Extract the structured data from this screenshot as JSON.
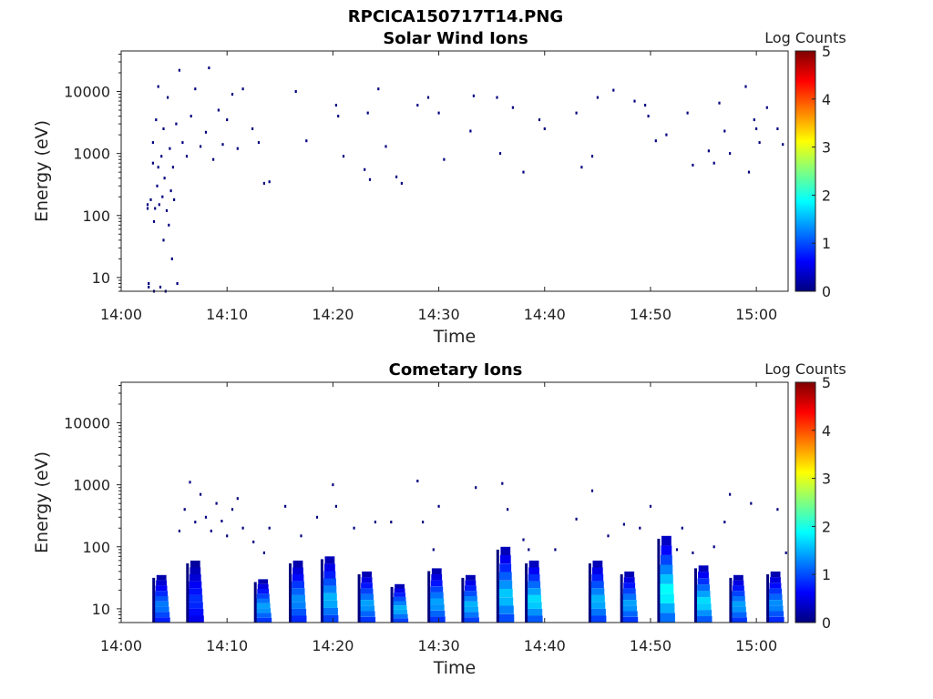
{
  "figure": {
    "title": "RPCICA150717T14.PNG"
  },
  "colors": {
    "colormap": [
      "#00007f",
      "#0000ff",
      "#007fff",
      "#00ffff",
      "#7fff7f",
      "#ffff00",
      "#ff7f00",
      "#ff0000",
      "#7f0000"
    ],
    "axis": "#222222"
  },
  "chart_data": [
    {
      "type": "heatmap",
      "title": "Solar Wind Ions",
      "xlabel": "Time",
      "ylabel": "Energy (eV)",
      "colorbar_label": "Log Counts",
      "xlim": [
        "14:00",
        "15:03"
      ],
      "ylim": [
        6,
        45000
      ],
      "yscale": "log",
      "x_ticks": [
        "14:00",
        "14:10",
        "14:20",
        "14:30",
        "14:40",
        "14:50",
        "15:00"
      ],
      "y_ticks": [
        "10",
        "100",
        "1000",
        "10000"
      ],
      "clim": [
        0,
        5
      ],
      "cbar_ticks": [
        "0",
        "1",
        "2",
        "3",
        "4",
        "5"
      ],
      "grid": false,
      "points": [
        [
          "14:02.5",
          150,
          0
        ],
        [
          "14:02.5",
          130,
          0
        ],
        [
          "14:02.6",
          7,
          0
        ],
        [
          "14:02.6",
          8,
          0
        ],
        [
          "14:02.8",
          180,
          0
        ],
        [
          "14:03.0",
          700,
          0
        ],
        [
          "14:03.0",
          1500,
          0
        ],
        [
          "14:03.1",
          80,
          0
        ],
        [
          "14:03.1",
          6,
          0
        ],
        [
          "14:03.2",
          130,
          0
        ],
        [
          "14:03.3",
          3500,
          0
        ],
        [
          "14:03.4",
          300,
          0
        ],
        [
          "14:03.5",
          600,
          0
        ],
        [
          "14:03.5",
          12000,
          0
        ],
        [
          "14:03.6",
          150,
          0
        ],
        [
          "14:03.7",
          7,
          0
        ],
        [
          "14:03.8",
          900,
          0
        ],
        [
          "14:03.9",
          200,
          0
        ],
        [
          "14:04.0",
          40,
          0
        ],
        [
          "14:04.0",
          2500,
          0
        ],
        [
          "14:04.1",
          400,
          0
        ],
        [
          "14:04.2",
          6,
          0
        ],
        [
          "14:04.3",
          120,
          0
        ],
        [
          "14:04.4",
          8000,
          0
        ],
        [
          "14:04.5",
          70,
          0
        ],
        [
          "14:04.6",
          1200,
          0
        ],
        [
          "14:04.7",
          250,
          0
        ],
        [
          "14:04.8",
          20,
          0
        ],
        [
          "14:04.9",
          600,
          0
        ],
        [
          "14:05.0",
          180,
          0
        ],
        [
          "14:05.2",
          3000,
          0
        ],
        [
          "14:05.3",
          8,
          0
        ],
        [
          "14:05.5",
          22000,
          0
        ],
        [
          "14:05.8",
          1500,
          0
        ],
        [
          "14:06.2",
          900,
          0
        ],
        [
          "14:06.6",
          4000,
          0
        ],
        [
          "14:07.0",
          11000,
          0
        ],
        [
          "14:07.5",
          1300,
          0
        ],
        [
          "14:08.0",
          2200,
          0
        ],
        [
          "14:08.3",
          24000,
          0
        ],
        [
          "14:08.7",
          800,
          0
        ],
        [
          "14:09.2",
          5000,
          0
        ],
        [
          "14:09.6",
          1400,
          0
        ],
        [
          "14:10.0",
          3500,
          0
        ],
        [
          "14:10.5",
          9000,
          0
        ],
        [
          "14:11.0",
          1200,
          0
        ],
        [
          "14:11.5",
          11000,
          0
        ],
        [
          "14:12.4",
          2500,
          0
        ],
        [
          "14:13.0",
          1500,
          0
        ],
        [
          "14:13.5",
          330,
          0
        ],
        [
          "14:14.0",
          350,
          0
        ],
        [
          "14:16.5",
          10000,
          0
        ],
        [
          "14:17.5",
          1600,
          0
        ],
        [
          "14:20.3",
          6000,
          0
        ],
        [
          "14:20.5",
          4000,
          0
        ],
        [
          "14:21.0",
          900,
          0
        ],
        [
          "14:23.0",
          550,
          0
        ],
        [
          "14:23.3",
          4500,
          0
        ],
        [
          "14:23.5",
          380,
          0
        ],
        [
          "14:24.3",
          11000,
          0
        ],
        [
          "14:25.0",
          1300,
          0
        ],
        [
          "14:26.0",
          420,
          0
        ],
        [
          "14:26.5",
          330,
          0
        ],
        [
          "14:28.0",
          6000,
          0
        ],
        [
          "14:29.0",
          8000,
          0
        ],
        [
          "14:30.0",
          4500,
          0
        ],
        [
          "14:30.5",
          800,
          0
        ],
        [
          "14:33.0",
          2300,
          0
        ],
        [
          "14:33.3",
          8500,
          0
        ],
        [
          "14:35.5",
          8000,
          0
        ],
        [
          "14:35.8",
          1000,
          0
        ],
        [
          "14:37.0",
          5500,
          0
        ],
        [
          "14:38.0",
          500,
          0
        ],
        [
          "14:39.5",
          3500,
          0
        ],
        [
          "14:40.0",
          2500,
          0
        ],
        [
          "14:43.0",
          4500,
          0
        ],
        [
          "14:43.5",
          600,
          0
        ],
        [
          "14:44.5",
          900,
          0
        ],
        [
          "14:45.0",
          8000,
          0
        ],
        [
          "14:46.5",
          10500,
          0
        ],
        [
          "14:48.5",
          7000,
          0
        ],
        [
          "14:49.5",
          6000,
          0
        ],
        [
          "14:49.8",
          4000,
          0
        ],
        [
          "14:50.5",
          1600,
          0
        ],
        [
          "14:51.5",
          2000,
          0
        ],
        [
          "14:53.5",
          4500,
          0
        ],
        [
          "14:54.0",
          650,
          0
        ],
        [
          "14:55.5",
          1100,
          0
        ],
        [
          "14:56.0",
          700,
          0
        ],
        [
          "14:56.5",
          6500,
          0
        ],
        [
          "14:57.0",
          2300,
          0
        ],
        [
          "14:57.5",
          1000,
          0
        ],
        [
          "14:59.0",
          12000,
          0
        ],
        [
          "14:59.3",
          500,
          0
        ],
        [
          "14:59.8",
          3500,
          0
        ],
        [
          "15:00.0",
          2500,
          0
        ],
        [
          "15:00.3",
          1500,
          0
        ],
        [
          "15:01.0",
          5500,
          0
        ],
        [
          "15:02.0",
          2500,
          0
        ],
        [
          "15:02.5",
          1400,
          0
        ]
      ]
    },
    {
      "type": "heatmap",
      "title": "Cometary Ions",
      "xlabel": "Time",
      "ylabel": "Energy (eV)",
      "colorbar_label": "Log Counts",
      "xlim": [
        "14:00",
        "15:03"
      ],
      "ylim": [
        6,
        45000
      ],
      "yscale": "log",
      "x_ticks": [
        "14:00",
        "14:10",
        "14:20",
        "14:30",
        "14:40",
        "14:50",
        "15:00"
      ],
      "y_ticks": [
        "10",
        "100",
        "1000",
        "10000"
      ],
      "clim": [
        0,
        5
      ],
      "cbar_ticks": [
        "0",
        "1",
        "2",
        "3",
        "4",
        "5"
      ],
      "grid": false,
      "bursts": [
        {
          "t": "14:03.8",
          "emin": 6,
          "emax": 35,
          "peak": 1.3
        },
        {
          "t": "14:07.0",
          "emin": 6,
          "emax": 60,
          "peak": 0.9
        },
        {
          "t": "14:13.4",
          "emin": 6,
          "emax": 30,
          "peak": 1.5
        },
        {
          "t": "14:16.7",
          "emin": 6,
          "emax": 60,
          "peak": 1.4
        },
        {
          "t": "14:19.7",
          "emin": 6,
          "emax": 70,
          "peak": 1.6
        },
        {
          "t": "14:23.2",
          "emin": 6,
          "emax": 40,
          "peak": 1.5
        },
        {
          "t": "14:26.3",
          "emin": 6,
          "emax": 25,
          "peak": 1.6
        },
        {
          "t": "14:29.8",
          "emin": 6,
          "emax": 45,
          "peak": 1.5
        },
        {
          "t": "14:33.0",
          "emin": 6,
          "emax": 35,
          "peak": 1.6
        },
        {
          "t": "14:36.3",
          "emin": 6,
          "emax": 100,
          "peak": 1.7
        },
        {
          "t": "14:39.0",
          "emin": 6,
          "emax": 60,
          "peak": 1.8
        },
        {
          "t": "14:45.0",
          "emin": 6,
          "emax": 60,
          "peak": 1.6
        },
        {
          "t": "14:48.0",
          "emin": 6,
          "emax": 40,
          "peak": 1.5
        },
        {
          "t": "14:51.5",
          "emin": 6,
          "emax": 150,
          "peak": 2.0
        },
        {
          "t": "14:55.0",
          "emin": 6,
          "emax": 50,
          "peak": 1.8
        },
        {
          "t": "14:58.3",
          "emin": 6,
          "emax": 35,
          "peak": 1.5
        },
        {
          "t": "15:01.8",
          "emin": 6,
          "emax": 40,
          "peak": 1.4
        }
      ],
      "points": [
        [
          "14:05.5",
          180,
          0
        ],
        [
          "14:06.0",
          400,
          0
        ],
        [
          "14:06.5",
          1100,
          0
        ],
        [
          "14:07.0",
          250,
          0
        ],
        [
          "14:07.5",
          700,
          0
        ],
        [
          "14:08.0",
          300,
          0
        ],
        [
          "14:08.5",
          180,
          0
        ],
        [
          "14:09.0",
          500,
          0
        ],
        [
          "14:09.5",
          260,
          0
        ],
        [
          "14:10.0",
          150,
          0
        ],
        [
          "14:10.5",
          400,
          0
        ],
        [
          "14:11.0",
          600,
          0
        ],
        [
          "14:11.5",
          200,
          0
        ],
        [
          "14:12.5",
          120,
          0
        ],
        [
          "14:13.5",
          80,
          0
        ],
        [
          "14:14.0",
          200,
          0
        ],
        [
          "14:15.5",
          450,
          0
        ],
        [
          "14:17.0",
          150,
          0
        ],
        [
          "14:18.5",
          300,
          0
        ],
        [
          "14:20.0",
          1000,
          0
        ],
        [
          "14:20.3",
          450,
          0
        ],
        [
          "14:22.0",
          200,
          0
        ],
        [
          "14:24.0",
          250,
          0
        ],
        [
          "14:25.5",
          250,
          0
        ],
        [
          "14:28.0",
          1150,
          0
        ],
        [
          "14:28.5",
          250,
          0
        ],
        [
          "14:29.5",
          90,
          0
        ],
        [
          "14:30.0",
          450,
          0
        ],
        [
          "14:33.5",
          900,
          0
        ],
        [
          "14:36.0",
          1050,
          0
        ],
        [
          "14:36.5",
          400,
          0
        ],
        [
          "14:38.0",
          130,
          0
        ],
        [
          "14:38.5",
          90,
          0
        ],
        [
          "14:43.0",
          280,
          0
        ],
        [
          "14:44.5",
          800,
          0
        ],
        [
          "14:46.0",
          150,
          0
        ],
        [
          "14:47.5",
          230,
          0
        ],
        [
          "14:49.0",
          200,
          0
        ],
        [
          "14:50.0",
          450,
          0
        ],
        [
          "14:53.0",
          200,
          0
        ],
        [
          "14:56.0",
          100,
          0
        ],
        [
          "14:57.0",
          250,
          0
        ],
        [
          "14:57.5",
          700,
          0
        ],
        [
          "14:59.5",
          500,
          0
        ],
        [
          "15:02.0",
          400,
          0
        ],
        [
          "15:02.8",
          80,
          0
        ],
        [
          "14:52.5",
          90,
          0
        ],
        [
          "14:54.0",
          80,
          0
        ],
        [
          "14:41.0",
          90,
          0
        ]
      ]
    }
  ]
}
